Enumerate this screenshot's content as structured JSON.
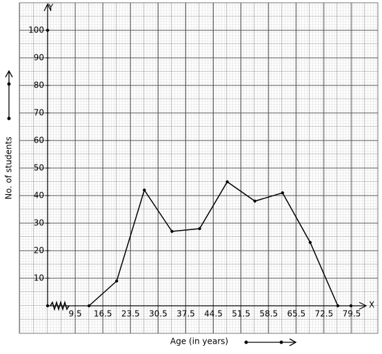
{
  "chart_data": {
    "type": "line",
    "x_label": "Age (in years)",
    "y_label": "No. of students",
    "x_axis_name": "X",
    "y_axis_name": "Y",
    "x": [
      13,
      20,
      27,
      34,
      41,
      48,
      55,
      62,
      69,
      76
    ],
    "values": [
      0,
      9,
      42,
      27,
      28,
      45,
      38,
      41,
      23,
      0
    ],
    "color": "#000000",
    "xlim": [
      2.5,
      83
    ],
    "ylim": [
      0,
      110
    ],
    "xticks": [
      9.5,
      16.5,
      23.5,
      30.5,
      37.5,
      44.5,
      51.5,
      58.5,
      65.5,
      72.5,
      79.5
    ],
    "yticks": [
      10,
      20,
      30,
      40,
      50,
      60,
      70,
      80,
      90,
      100
    ],
    "grid": true
  }
}
